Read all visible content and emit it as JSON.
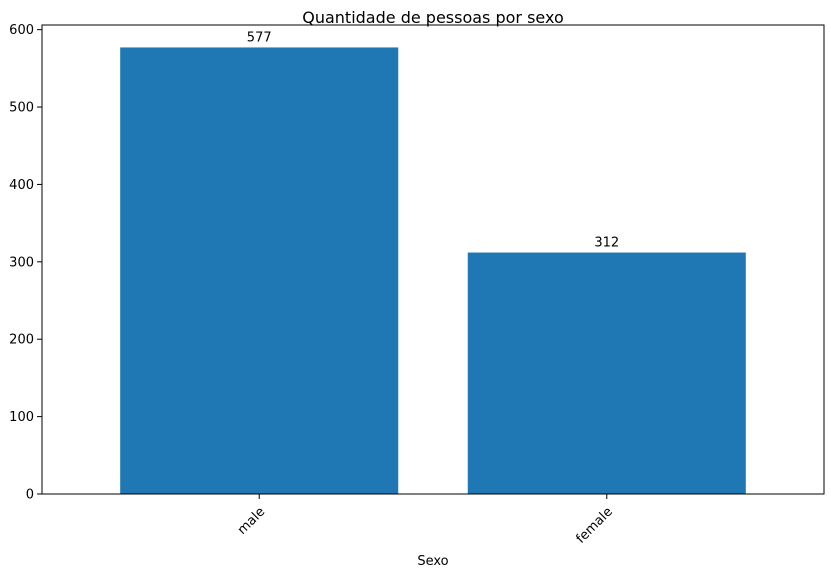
{
  "chart_data": {
    "type": "bar",
    "title": "Quantidade de pessoas por sexo",
    "xlabel": "Sexo",
    "ylabel": "",
    "categories": [
      "male",
      "female"
    ],
    "values": [
      577,
      312
    ],
    "data_labels": [
      "577",
      "312"
    ],
    "ylim": [
      0,
      606
    ],
    "yticks": [
      0,
      100,
      200,
      300,
      400,
      500,
      600
    ],
    "ytick_labels": [
      "0",
      "100",
      "200",
      "300",
      "400",
      "500",
      "600"
    ],
    "x_tick_rotation_deg": 45,
    "bar_color": "#1f77b4",
    "grid": false,
    "legend": "none"
  }
}
